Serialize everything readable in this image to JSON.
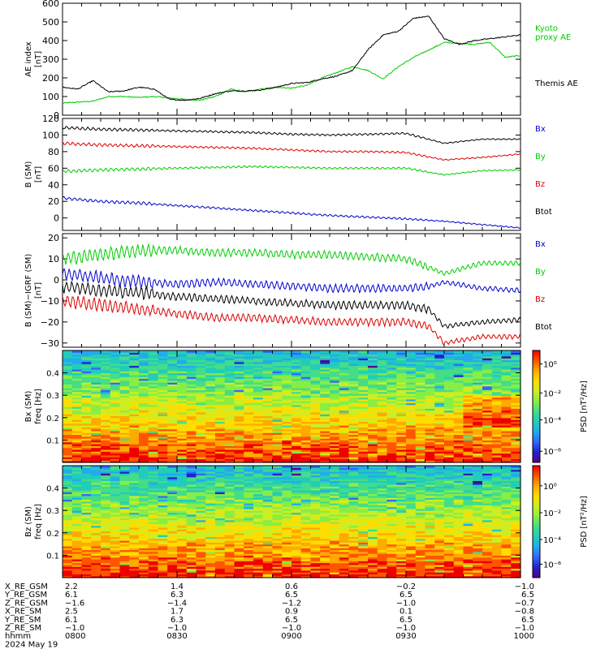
{
  "panels": [
    {
      "id": "ae",
      "type": "line",
      "ylabel": "AE index",
      "yunit": "[nT]",
      "ylim": [
        0,
        600
      ],
      "yticks": [
        "0",
        "100",
        "200",
        "300",
        "400",
        "500",
        "600"
      ],
      "yticks_v": [
        0,
        100,
        200,
        300,
        400,
        500,
        600
      ],
      "series": [
        {
          "name": "Kyoto proxy AE",
          "legend_lines": [
            "Kyoto",
            "proxy AE"
          ],
          "color": "#00cc00",
          "x": [
            0,
            2,
            4,
            6,
            8,
            10,
            12,
            14,
            16,
            18,
            20,
            22,
            24,
            26,
            28,
            30,
            32,
            34,
            36,
            38,
            40,
            42,
            44,
            46,
            48,
            50,
            52,
            54,
            56,
            58,
            60
          ],
          "y": [
            65,
            70,
            75,
            100,
            100,
            95,
            100,
            92,
            85,
            80,
            100,
            140,
            125,
            140,
            150,
            145,
            160,
            200,
            230,
            260,
            240,
            195,
            260,
            310,
            350,
            390,
            385,
            380,
            390,
            310,
            320
          ]
        },
        {
          "name": "Themis AE",
          "legend_lines": [
            "Themis AE"
          ],
          "color": "#000000",
          "x": [
            0,
            2,
            4,
            6,
            8,
            10,
            12,
            14,
            16,
            18,
            20,
            22,
            24,
            26,
            28,
            30,
            32,
            34,
            36,
            38,
            40,
            42,
            44,
            46,
            48,
            50,
            52,
            54,
            56,
            58,
            60
          ],
          "y": [
            150,
            140,
            185,
            125,
            130,
            150,
            140,
            85,
            80,
            90,
            115,
            130,
            130,
            135,
            150,
            170,
            175,
            195,
            210,
            240,
            350,
            430,
            450,
            520,
            530,
            410,
            380,
            400,
            410,
            420,
            430
          ]
        }
      ]
    },
    {
      "id": "bsm",
      "type": "line",
      "ylabel": "B (SM)",
      "yunit": "[nT]",
      "ylim": [
        -15,
        120
      ],
      "yticks": [
        "0",
        "20",
        "40",
        "60",
        "80",
        "100",
        "120"
      ],
      "yticks_v": [
        0,
        20,
        40,
        60,
        80,
        100,
        120
      ],
      "series": [
        {
          "name": "Bx",
          "legend_lines": [
            "Bx"
          ],
          "color": "#0000cc",
          "x": [
            0,
            5,
            10,
            15,
            20,
            25,
            30,
            35,
            40,
            45,
            50,
            55,
            60
          ],
          "y": [
            24,
            20,
            18,
            15,
            12,
            9,
            6,
            3,
            1,
            -1,
            -4,
            -8,
            -12
          ]
        },
        {
          "name": "By",
          "legend_lines": [
            "By"
          ],
          "color": "#00cc00",
          "x": [
            0,
            5,
            10,
            15,
            20,
            25,
            30,
            35,
            40,
            45,
            50,
            55,
            60
          ],
          "y": [
            56,
            58,
            59,
            60,
            61,
            62,
            61,
            60,
            60,
            60,
            52,
            57,
            58
          ]
        },
        {
          "name": "Bz",
          "legend_lines": [
            "Bz"
          ],
          "color": "#dd0000",
          "x": [
            0,
            5,
            10,
            15,
            20,
            25,
            30,
            35,
            40,
            45,
            50,
            55,
            60
          ],
          "y": [
            90,
            88,
            87,
            86,
            85,
            84,
            82,
            80,
            80,
            79,
            70,
            73,
            77
          ]
        },
        {
          "name": "Btot",
          "legend_lines": [
            "Btot"
          ],
          "color": "#000000",
          "x": [
            0,
            5,
            10,
            15,
            20,
            25,
            30,
            35,
            40,
            45,
            50,
            55,
            60
          ],
          "y": [
            109,
            107,
            106,
            105,
            104,
            103,
            101,
            100,
            101,
            102,
            90,
            95,
            95
          ]
        }
      ]
    },
    {
      "id": "bdiff",
      "type": "line",
      "ylabel": "B (SM)−IGRF (SM)",
      "yunit": "[nT]",
      "ylim": [
        -32,
        22
      ],
      "yticks": [
        "−30",
        "−20",
        "−10",
        "0",
        "10",
        "20"
      ],
      "yticks_v": [
        -30,
        -20,
        -10,
        0,
        10,
        20
      ],
      "series": [
        {
          "name": "Bx",
          "legend_lines": [
            "Bx"
          ],
          "color": "#0000cc",
          "x": [
            0,
            5,
            10,
            15,
            20,
            25,
            30,
            35,
            40,
            45,
            48,
            50,
            55,
            60
          ],
          "y": [
            3,
            1,
            -1,
            -2,
            -1,
            -2,
            -3,
            -4,
            -4,
            -4,
            -3,
            -1,
            -4,
            -5
          ]
        },
        {
          "name": "By",
          "legend_lines": [
            "By"
          ],
          "color": "#00cc00",
          "x": [
            0,
            5,
            10,
            15,
            20,
            25,
            30,
            35,
            40,
            45,
            48,
            50,
            55,
            60
          ],
          "y": [
            10,
            12,
            14,
            14,
            13,
            13,
            12,
            12,
            11,
            10,
            6,
            3,
            8,
            8
          ]
        },
        {
          "name": "Bz",
          "legend_lines": [
            "Bz"
          ],
          "color": "#dd0000",
          "x": [
            0,
            5,
            10,
            15,
            20,
            25,
            30,
            35,
            40,
            45,
            48,
            50,
            55,
            60
          ],
          "y": [
            -10,
            -12,
            -14,
            -16,
            -18,
            -18,
            -19,
            -20,
            -20,
            -20,
            -22,
            -30,
            -27,
            -27
          ]
        },
        {
          "name": "Btot",
          "legend_lines": [
            "Btot"
          ],
          "color": "#000000",
          "x": [
            0,
            5,
            10,
            15,
            20,
            25,
            30,
            35,
            40,
            45,
            48,
            50,
            55,
            60
          ],
          "y": [
            -3,
            -5,
            -6,
            -8,
            -9,
            -10,
            -11,
            -12,
            -12,
            -12,
            -14,
            -22,
            -20,
            -19
          ]
        }
      ]
    },
    {
      "id": "specbx",
      "type": "heatmap",
      "ylabel": "Bx (SM)",
      "ylabel2": "freq [Hz]",
      "ylim": [
        0,
        0.5
      ],
      "yticks": [
        "0.1",
        "0.2",
        "0.3",
        "0.4"
      ],
      "yticks_v": [
        0.1,
        0.2,
        0.3,
        0.4
      ],
      "cbar_label": "PSD [nT²/Hz]",
      "cbar_ticks": [
        "10⁰",
        "10⁻²",
        "10⁻⁴",
        "10⁻⁶"
      ],
      "cbar_ticks_v": [
        0.12,
        0.38,
        0.62,
        0.9
      ]
    },
    {
      "id": "specbz",
      "type": "heatmap",
      "ylabel": "Bz (SM)",
      "ylabel2": "freq [Hz]",
      "ylim": [
        0,
        0.5
      ],
      "yticks": [
        "0.1",
        "0.2",
        "0.3",
        "0.4"
      ],
      "yticks_v": [
        0.1,
        0.2,
        0.3,
        0.4
      ],
      "cbar_label": "PSD [nT²/Hz]",
      "cbar_ticks": [
        "10⁰",
        "10⁻²",
        "10⁻⁴",
        "10⁻⁶"
      ],
      "cbar_ticks_v": [
        0.18,
        0.42,
        0.66,
        0.88
      ]
    }
  ],
  "chart_data": {
    "type": "line",
    "xlim": [
      0,
      60
    ],
    "time_ticks": [
      "0800",
      "0830",
      "0900",
      "0930",
      "1000"
    ],
    "time_ticks_v": [
      0,
      15,
      30,
      45,
      60
    ],
    "ephemeris": {
      "rows": [
        {
          "label": "X_RE_GSM",
          "values": [
            "2.2",
            "1.4",
            "0.6",
            "−0.2",
            "−1.0"
          ]
        },
        {
          "label": "Y_RE_GSM",
          "values": [
            "6.1",
            "6.3",
            "6.5",
            "6.5",
            "6.5"
          ]
        },
        {
          "label": "Z_RE_GSM",
          "values": [
            "−1.6",
            "−1.4",
            "−1.2",
            "−1.0",
            "−0.7"
          ]
        },
        {
          "label": "X_RE_SM",
          "values": [
            "2.5",
            "1.7",
            "0.9",
            "0.1",
            "−0.8"
          ]
        },
        {
          "label": "Y_RE_SM",
          "values": [
            "6.1",
            "6.3",
            "6.5",
            "6.5",
            "6.5"
          ]
        },
        {
          "label": "Z_RE_SM",
          "values": [
            "−1.0",
            "−1.0",
            "−1.0",
            "−1.0",
            "−1.0"
          ]
        }
      ],
      "time_label": "hhmm",
      "date": "2024 May 19"
    }
  }
}
